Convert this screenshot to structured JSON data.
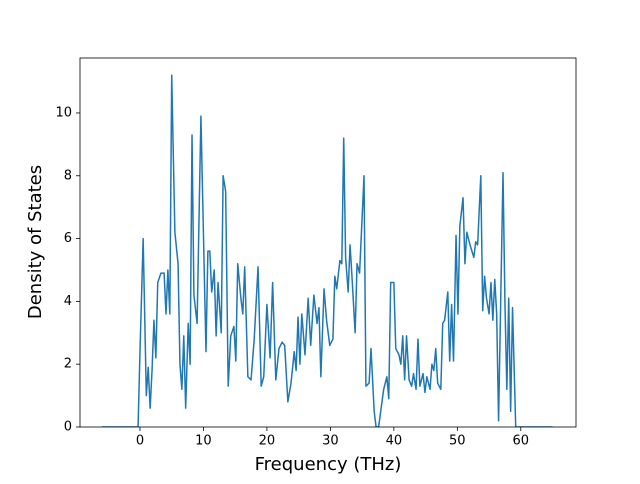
{
  "chart_data": {
    "type": "line",
    "xlabel": "Frequency (THz)",
    "ylabel": "Density of States",
    "xlim": [
      -9.45,
      68.7
    ],
    "ylim": [
      0,
      11.75
    ],
    "xticks": [
      0,
      10,
      20,
      30,
      40,
      50,
      60
    ],
    "yticks": [
      0,
      2,
      4,
      6,
      8,
      10
    ],
    "series": [
      {
        "color": "#1f77b4",
        "x": [
          -6,
          -0.3,
          0,
          0.5,
          1,
          1.3,
          1.6,
          1.9,
          2.2,
          2.5,
          2.8,
          3.3,
          3.8,
          4.1,
          4.4,
          4.7,
          5.0,
          5.5,
          6.0,
          6.3,
          6.6,
          6.9,
          7.2,
          7.6,
          7.9,
          8.2,
          8.5,
          9.0,
          9.6,
          10.1,
          10.4,
          10.7,
          11.0,
          11.3,
          11.7,
          12.0,
          12.3,
          12.8,
          13.1,
          13.5,
          13.9,
          14.3,
          14.8,
          15.1,
          15.4,
          15.9,
          16.2,
          16.5,
          17.0,
          17.5,
          18.0,
          18.6,
          19.1,
          19.5,
          20.0,
          20.5,
          20.9,
          21.4,
          21.9,
          22.4,
          22.8,
          23.3,
          23.8,
          24.3,
          24.6,
          24.9,
          25.2,
          25.5,
          26.0,
          26.5,
          26.9,
          27.4,
          27.9,
          28.2,
          28.5,
          29.0,
          29.4,
          29.9,
          30.4,
          30.7,
          31.0,
          31.5,
          31.8,
          32.1,
          32.4,
          32.8,
          33.1,
          33.4,
          33.9,
          34.2,
          34.6,
          35.3,
          35.6,
          36.1,
          36.4,
          36.9,
          37.2,
          37.6,
          38.0,
          38.4,
          38.9,
          39.2,
          39.5,
          40.0,
          40.3,
          40.8,
          41.1,
          41.4,
          41.7,
          42.0,
          42.4,
          42.8,
          43.1,
          43.5,
          43.8,
          44.1,
          44.6,
          44.9,
          45.2,
          45.7,
          46.0,
          46.3,
          46.6,
          46.9,
          47.4,
          47.7,
          48.0,
          48.5,
          48.8,
          49.1,
          49.4,
          49.8,
          50.1,
          50.4,
          50.9,
          51.2,
          51.5,
          52.0,
          52.3,
          52.6,
          52.9,
          53.2,
          53.7,
          54.0,
          54.3,
          54.6,
          55.0,
          55.3,
          55.6,
          55.9,
          56.2,
          56.5,
          57.2,
          57.5,
          57.8,
          58.1,
          58.4,
          58.7,
          59.2,
          65
        ],
        "values": [
          0,
          0,
          2.4,
          6.0,
          1.0,
          1.9,
          0.6,
          1.8,
          3.4,
          2.2,
          4.6,
          4.9,
          4.9,
          3.6,
          5.0,
          3.6,
          11.2,
          6.2,
          5.2,
          2.0,
          1.2,
          2.9,
          0.6,
          3.3,
          2.0,
          9.3,
          4.2,
          3.3,
          9.9,
          5.2,
          2.4,
          5.6,
          5.6,
          4.3,
          5.0,
          2.9,
          4.6,
          3.0,
          8.0,
          7.5,
          1.3,
          2.9,
          3.2,
          2.1,
          5.2,
          4.1,
          3.6,
          5.1,
          1.6,
          1.5,
          2.8,
          5.1,
          1.3,
          1.6,
          3.9,
          2.2,
          4.6,
          1.5,
          2.5,
          2.7,
          2.6,
          0.8,
          1.4,
          2.4,
          1.8,
          3.5,
          2.0,
          3.6,
          2.3,
          4.1,
          2.6,
          4.2,
          3.3,
          3.8,
          1.6,
          4.4,
          3.4,
          2.6,
          2.8,
          4.8,
          4.4,
          5.3,
          5.2,
          9.2,
          5.4,
          4.3,
          5.8,
          4.8,
          3.0,
          5.2,
          4.9,
          8.0,
          1.3,
          1.4,
          2.5,
          0.5,
          0,
          0,
          0.6,
          1.2,
          1.6,
          0.9,
          4.6,
          4.6,
          2.5,
          2.3,
          2.0,
          2.9,
          1.5,
          2.9,
          1.5,
          1.3,
          1.7,
          1.2,
          2.8,
          1.3,
          1.7,
          1.1,
          1.6,
          1.2,
          2.0,
          1.8,
          2.5,
          1.4,
          1.2,
          3.3,
          3.4,
          4.3,
          2.1,
          3.9,
          2.1,
          6.1,
          3.6,
          6.4,
          7.3,
          5.2,
          6.2,
          5.8,
          5.6,
          5.4,
          5.9,
          5.8,
          8.0,
          3.7,
          4.8,
          4.1,
          3.6,
          4.6,
          3.4,
          4.7,
          3.6,
          0.2,
          8.1,
          4.0,
          1.2,
          4.1,
          0.5,
          3.8,
          0,
          0
        ]
      }
    ]
  }
}
